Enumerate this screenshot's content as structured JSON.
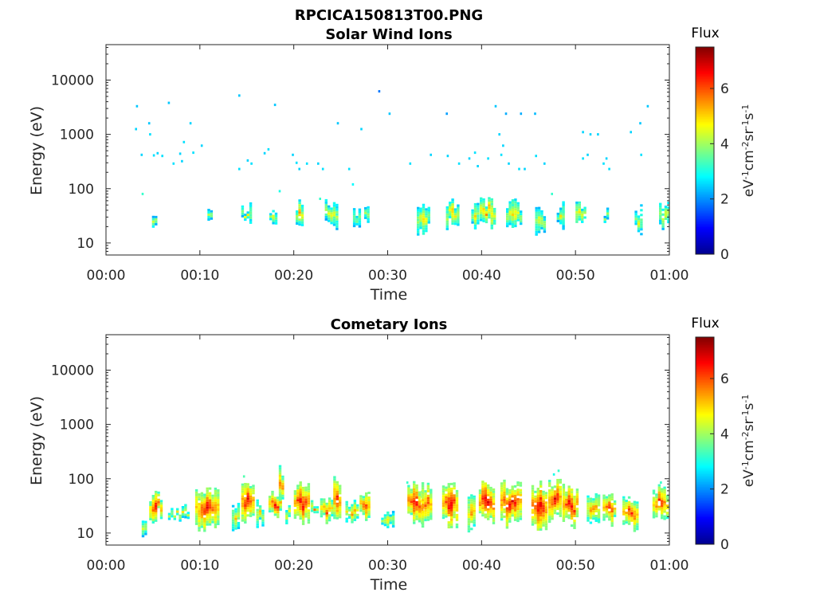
{
  "figure": {
    "title": "RPCICA150813T00.PNG"
  },
  "colors": {
    "jet_stops": [
      "#00008f",
      "#0000ff",
      "#0080ff",
      "#00ffff",
      "#80ff80",
      "#ffff00",
      "#ff8000",
      "#ff0000",
      "#800000"
    ]
  },
  "colorbar": {
    "label": "Flux",
    "unit_base": [
      "eV",
      "cm",
      "sr",
      "s"
    ],
    "unit_exp": [
      "-1",
      "-2",
      "-1",
      "-1"
    ],
    "range": [
      0,
      7.5
    ],
    "ticks": [
      {
        "value": 0,
        "label": "0"
      },
      {
        "value": 2,
        "label": "2"
      },
      {
        "value": 4,
        "label": "4"
      },
      {
        "value": 6,
        "label": "6"
      }
    ]
  },
  "chart_data": [
    {
      "type": "heatmap",
      "title": "Solar Wind Ions",
      "xlabel": "Time",
      "ylabel": "Energy (eV)",
      "y_scale": "log",
      "xlim": [
        "00:00",
        "01:00"
      ],
      "ylim": [
        6,
        45000
      ],
      "x_ticks": [
        "00:00",
        "00:10",
        "00:20",
        "00:30",
        "00:40",
        "00:50",
        "01:00"
      ],
      "y_ticks": [
        {
          "value": 10,
          "label": "10"
        },
        {
          "value": 100,
          "label": "100"
        },
        {
          "value": 1000,
          "label": "1000"
        },
        {
          "value": 10000,
          "label": "10000"
        }
      ],
      "bands": [
        {
          "t0": 4.9,
          "t1": 5.6,
          "e_low": 23,
          "e_high": 40,
          "intensity": 4.6
        },
        {
          "t0": 10.8,
          "t1": 11.4,
          "e_low": 22,
          "e_high": 45,
          "intensity": 4.4
        },
        {
          "t0": 14.4,
          "t1": 15.6,
          "e_low": 25,
          "e_high": 48,
          "intensity": 4.8
        },
        {
          "t0": 17.4,
          "t1": 18.3,
          "e_low": 23,
          "e_high": 40,
          "intensity": 4.7
        },
        {
          "t0": 20.2,
          "t1": 21.2,
          "e_low": 23,
          "e_high": 55,
          "intensity": 5.2
        },
        {
          "t0": 23.3,
          "t1": 24.8,
          "e_low": 22,
          "e_high": 60,
          "intensity": 4.8
        },
        {
          "t0": 26.3,
          "t1": 27.1,
          "e_low": 24,
          "e_high": 40,
          "intensity": 4.3
        },
        {
          "t0": 27.5,
          "t1": 28.2,
          "e_low": 25,
          "e_high": 45,
          "intensity": 4.5
        },
        {
          "t0": 33.1,
          "t1": 34.4,
          "e_low": 18,
          "e_high": 45,
          "intensity": 5.0
        },
        {
          "t0": 36.2,
          "t1": 37.7,
          "e_low": 22,
          "e_high": 55,
          "intensity": 5.2
        },
        {
          "t0": 38.9,
          "t1": 39.7,
          "e_low": 20,
          "e_high": 50,
          "intensity": 4.8
        },
        {
          "t0": 39.8,
          "t1": 41.4,
          "e_low": 24,
          "e_high": 60,
          "intensity": 5.6
        },
        {
          "t0": 42.6,
          "t1": 44.4,
          "e_low": 20,
          "e_high": 55,
          "intensity": 5.1
        },
        {
          "t0": 45.7,
          "t1": 46.9,
          "e_low": 14,
          "e_high": 42,
          "intensity": 4.8
        },
        {
          "t0": 48.0,
          "t1": 48.9,
          "e_low": 24,
          "e_high": 50,
          "intensity": 4.6
        },
        {
          "t0": 50.0,
          "t1": 51.2,
          "e_low": 23,
          "e_high": 55,
          "intensity": 5.2
        },
        {
          "t0": 53.0,
          "t1": 53.7,
          "e_low": 22,
          "e_high": 45,
          "intensity": 4.6
        },
        {
          "t0": 56.3,
          "t1": 57.1,
          "e_low": 18,
          "e_high": 45,
          "intensity": 4.5
        },
        {
          "t0": 58.9,
          "t1": 60.0,
          "e_low": 20,
          "e_high": 50,
          "intensity": 4.8
        }
      ],
      "points": [
        {
          "t": 3.3,
          "e": 3300,
          "intensity": 2.4
        },
        {
          "t": 3.2,
          "e": 1250,
          "intensity": 2.5
        },
        {
          "t": 3.8,
          "e": 420,
          "intensity": 2.5
        },
        {
          "t": 4.6,
          "e": 1600,
          "intensity": 2.4
        },
        {
          "t": 4.7,
          "e": 1000,
          "intensity": 2.6
        },
        {
          "t": 5.1,
          "e": 410,
          "intensity": 2.6
        },
        {
          "t": 5.5,
          "e": 450,
          "intensity": 2.5
        },
        {
          "t": 6.0,
          "e": 400,
          "intensity": 2.6
        },
        {
          "t": 6.7,
          "e": 3800,
          "intensity": 2.4
        },
        {
          "t": 7.2,
          "e": 290,
          "intensity": 2.6
        },
        {
          "t": 7.9,
          "e": 440,
          "intensity": 2.5
        },
        {
          "t": 8.3,
          "e": 720,
          "intensity": 2.6
        },
        {
          "t": 8.1,
          "e": 320,
          "intensity": 2.5
        },
        {
          "t": 9.0,
          "e": 1600,
          "intensity": 2.5
        },
        {
          "t": 9.3,
          "e": 460,
          "intensity": 2.6
        },
        {
          "t": 10.2,
          "e": 620,
          "intensity": 2.5
        },
        {
          "t": 14.2,
          "e": 5200,
          "intensity": 2.4
        },
        {
          "t": 14.2,
          "e": 230,
          "intensity": 2.6
        },
        {
          "t": 15.1,
          "e": 330,
          "intensity": 2.5
        },
        {
          "t": 15.5,
          "e": 290,
          "intensity": 2.6
        },
        {
          "t": 16.9,
          "e": 450,
          "intensity": 2.5
        },
        {
          "t": 17.3,
          "e": 530,
          "intensity": 2.6
        },
        {
          "t": 18.0,
          "e": 3500,
          "intensity": 2.4
        },
        {
          "t": 18.5,
          "e": 90,
          "intensity": 3.0
        },
        {
          "t": 19.9,
          "e": 420,
          "intensity": 2.5
        },
        {
          "t": 20.3,
          "e": 300,
          "intensity": 2.6
        },
        {
          "t": 20.6,
          "e": 230,
          "intensity": 2.5
        },
        {
          "t": 21.4,
          "e": 290,
          "intensity": 2.6
        },
        {
          "t": 22.6,
          "e": 290,
          "intensity": 2.5
        },
        {
          "t": 23.1,
          "e": 230,
          "intensity": 2.6
        },
        {
          "t": 22.8,
          "e": 65,
          "intensity": 3.2
        },
        {
          "t": 24.7,
          "e": 1600,
          "intensity": 2.4
        },
        {
          "t": 25.9,
          "e": 230,
          "intensity": 2.6
        },
        {
          "t": 26.3,
          "e": 120,
          "intensity": 2.8
        },
        {
          "t": 27.2,
          "e": 1250,
          "intensity": 2.5
        },
        {
          "t": 29.1,
          "e": 6200,
          "intensity": 1.8
        },
        {
          "t": 30.2,
          "e": 2400,
          "intensity": 2.4
        },
        {
          "t": 32.4,
          "e": 290,
          "intensity": 2.6
        },
        {
          "t": 34.6,
          "e": 420,
          "intensity": 2.5
        },
        {
          "t": 36.3,
          "e": 2400,
          "intensity": 2.1
        },
        {
          "t": 36.4,
          "e": 400,
          "intensity": 2.5
        },
        {
          "t": 37.6,
          "e": 290,
          "intensity": 2.6
        },
        {
          "t": 38.7,
          "e": 360,
          "intensity": 2.5
        },
        {
          "t": 39.3,
          "e": 460,
          "intensity": 2.6
        },
        {
          "t": 39.6,
          "e": 260,
          "intensity": 2.5
        },
        {
          "t": 40.7,
          "e": 360,
          "intensity": 2.6
        },
        {
          "t": 41.5,
          "e": 3300,
          "intensity": 2.4
        },
        {
          "t": 41.9,
          "e": 1000,
          "intensity": 2.5
        },
        {
          "t": 42.3,
          "e": 620,
          "intensity": 2.5
        },
        {
          "t": 42.6,
          "e": 2400,
          "intensity": 2.2
        },
        {
          "t": 42.1,
          "e": 420,
          "intensity": 2.6
        },
        {
          "t": 42.9,
          "e": 290,
          "intensity": 2.5
        },
        {
          "t": 44.2,
          "e": 2400,
          "intensity": 2.2
        },
        {
          "t": 44.0,
          "e": 230,
          "intensity": 2.6
        },
        {
          "t": 44.6,
          "e": 230,
          "intensity": 2.5
        },
        {
          "t": 45.7,
          "e": 2400,
          "intensity": 2.3
        },
        {
          "t": 45.8,
          "e": 400,
          "intensity": 2.6
        },
        {
          "t": 46.7,
          "e": 290,
          "intensity": 2.5
        },
        {
          "t": 47.5,
          "e": 80,
          "intensity": 3.2
        },
        {
          "t": 50.8,
          "e": 1100,
          "intensity": 2.5
        },
        {
          "t": 50.8,
          "e": 360,
          "intensity": 2.6
        },
        {
          "t": 51.3,
          "e": 420,
          "intensity": 2.5
        },
        {
          "t": 51.6,
          "e": 1000,
          "intensity": 2.5
        },
        {
          "t": 52.4,
          "e": 1000,
          "intensity": 2.5
        },
        {
          "t": 53.0,
          "e": 290,
          "intensity": 2.6
        },
        {
          "t": 53.3,
          "e": 360,
          "intensity": 2.5
        },
        {
          "t": 53.6,
          "e": 230,
          "intensity": 2.6
        },
        {
          "t": 55.9,
          "e": 1100,
          "intensity": 2.5
        },
        {
          "t": 56.9,
          "e": 1600,
          "intensity": 2.4
        },
        {
          "t": 57.0,
          "e": 420,
          "intensity": 2.6
        },
        {
          "t": 57.7,
          "e": 3300,
          "intensity": 2.4
        },
        {
          "t": 3.9,
          "e": 80,
          "intensity": 3.2
        }
      ]
    },
    {
      "type": "heatmap",
      "title": "Cometary Ions",
      "xlabel": "Time",
      "ylabel": "Energy (eV)",
      "y_scale": "log",
      "xlim": [
        "00:00",
        "01:00"
      ],
      "ylim": [
        6,
        45000
      ],
      "x_ticks": [
        "00:00",
        "00:10",
        "00:20",
        "00:30",
        "00:40",
        "00:50",
        "01:00"
      ],
      "y_ticks": [
        {
          "value": 10,
          "label": "10"
        },
        {
          "value": 100,
          "label": "100"
        },
        {
          "value": 1000,
          "label": "1000"
        },
        {
          "value": 10000,
          "label": "10000"
        }
      ],
      "bands": [
        {
          "t0": 3.8,
          "t1": 4.4,
          "e_low": 8,
          "e_high": 17,
          "intensity": 4.8
        },
        {
          "t0": 4.6,
          "t1": 6.1,
          "e_low": 20,
          "e_high": 50,
          "intensity": 6.4
        },
        {
          "t0": 6.6,
          "t1": 8.8,
          "e_low": 18,
          "e_high": 30,
          "intensity": 5.0
        },
        {
          "t0": 9.5,
          "t1": 12.0,
          "e_low": 13,
          "e_high": 60,
          "intensity": 6.6
        },
        {
          "t0": 13.4,
          "t1": 14.2,
          "e_low": 13,
          "e_high": 30,
          "intensity": 5.0
        },
        {
          "t0": 14.4,
          "t1": 15.8,
          "e_low": 18,
          "e_high": 75,
          "intensity": 6.8
        },
        {
          "t0": 16.0,
          "t1": 17.0,
          "e_low": 15,
          "e_high": 35,
          "intensity": 5.2
        },
        {
          "t0": 17.3,
          "t1": 18.6,
          "e_low": 20,
          "e_high": 55,
          "intensity": 6.6
        },
        {
          "t0": 18.4,
          "t1": 18.9,
          "e_low": 40,
          "e_high": 150,
          "intensity": 6.2
        },
        {
          "t0": 19.1,
          "t1": 19.8,
          "e_low": 16,
          "e_high": 35,
          "intensity": 5.0
        },
        {
          "t0": 20.0,
          "t1": 21.6,
          "e_low": 18,
          "e_high": 75,
          "intensity": 6.8
        },
        {
          "t0": 21.8,
          "t1": 22.7,
          "e_low": 20,
          "e_high": 40,
          "intensity": 5.4
        },
        {
          "t0": 22.8,
          "t1": 24.3,
          "e_low": 18,
          "e_high": 40,
          "intensity": 6.0
        },
        {
          "t0": 24.2,
          "t1": 25.1,
          "e_low": 22,
          "e_high": 95,
          "intensity": 6.6
        },
        {
          "t0": 25.5,
          "t1": 27.0,
          "e_low": 17,
          "e_high": 40,
          "intensity": 5.6
        },
        {
          "t0": 27.0,
          "t1": 28.2,
          "e_low": 20,
          "e_high": 50,
          "intensity": 6.4
        },
        {
          "t0": 29.3,
          "t1": 30.6,
          "e_low": 12,
          "e_high": 22,
          "intensity": 5.0
        },
        {
          "t0": 32.1,
          "t1": 33.8,
          "e_low": 18,
          "e_high": 80,
          "intensity": 6.8
        },
        {
          "t0": 33.6,
          "t1": 34.8,
          "e_low": 15,
          "e_high": 85,
          "intensity": 6.4
        },
        {
          "t0": 35.8,
          "t1": 37.4,
          "e_low": 16,
          "e_high": 80,
          "intensity": 6.8
        },
        {
          "t0": 38.5,
          "t1": 39.5,
          "e_low": 14,
          "e_high": 45,
          "intensity": 5.6
        },
        {
          "t0": 39.7,
          "t1": 41.5,
          "e_low": 17,
          "e_high": 85,
          "intensity": 7.0
        },
        {
          "t0": 42.0,
          "t1": 44.4,
          "e_low": 16,
          "e_high": 85,
          "intensity": 6.8
        },
        {
          "t0": 45.3,
          "t1": 46.9,
          "e_low": 12,
          "e_high": 85,
          "intensity": 7.0
        },
        {
          "t0": 47.1,
          "t1": 48.5,
          "e_low": 18,
          "e_high": 100,
          "intensity": 6.8
        },
        {
          "t0": 48.6,
          "t1": 50.2,
          "e_low": 16,
          "e_high": 70,
          "intensity": 6.8
        },
        {
          "t0": 51.2,
          "t1": 52.6,
          "e_low": 18,
          "e_high": 45,
          "intensity": 5.8
        },
        {
          "t0": 52.9,
          "t1": 54.2,
          "e_low": 16,
          "e_high": 45,
          "intensity": 6.4
        },
        {
          "t0": 55.0,
          "t1": 56.6,
          "e_low": 13,
          "e_high": 40,
          "intensity": 6.4
        },
        {
          "t0": 58.2,
          "t1": 60.0,
          "e_low": 18,
          "e_high": 70,
          "intensity": 6.4
        }
      ],
      "points": [
        {
          "t": 32.1,
          "e": 85,
          "intensity": 3.2
        },
        {
          "t": 47.7,
          "e": 120,
          "intensity": 3.0
        },
        {
          "t": 48.2,
          "e": 140,
          "intensity": 3.2
        },
        {
          "t": 14.7,
          "e": 110,
          "intensity": 3.4
        },
        {
          "t": 59.1,
          "e": 85,
          "intensity": 3.2
        }
      ]
    }
  ]
}
